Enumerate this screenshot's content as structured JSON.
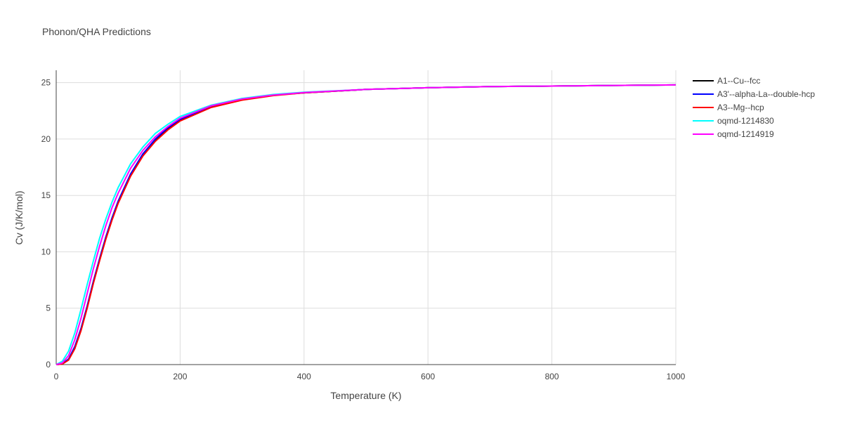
{
  "chart_data": {
    "type": "line",
    "title": "Phonon/QHA Predictions",
    "x_label": "Temperature (K)",
    "y_label": "Cv (J/K/mol)",
    "x": [
      0,
      10,
      20,
      30,
      40,
      50,
      60,
      70,
      80,
      90,
      100,
      120,
      140,
      160,
      180,
      200,
      250,
      300,
      350,
      400,
      500,
      600,
      700,
      800,
      900,
      1000
    ],
    "series": [
      {
        "name": "A1--Cu--fcc",
        "color": "#000000",
        "values": [
          0,
          0.06,
          0.45,
          1.5,
          3.1,
          5.1,
          7.3,
          9.3,
          11.2,
          12.9,
          14.4,
          16.8,
          18.6,
          19.9,
          20.9,
          21.7,
          22.85,
          23.5,
          23.9,
          24.1,
          24.4,
          24.55,
          24.65,
          24.7,
          24.75,
          24.8
        ]
      },
      {
        "name": "A3'--alpha-La--double-hcp",
        "color": "#0000ff",
        "values": [
          0,
          0.07,
          0.5,
          1.6,
          3.2,
          5.2,
          7.4,
          9.4,
          11.3,
          13.0,
          14.5,
          16.9,
          18.7,
          20.0,
          21.0,
          21.75,
          22.9,
          23.5,
          23.9,
          24.1,
          24.4,
          24.55,
          24.65,
          24.7,
          24.75,
          24.8
        ]
      },
      {
        "name": "A3--Mg--hcp",
        "color": "#ff0000",
        "values": [
          0,
          0.05,
          0.4,
          1.4,
          3.0,
          5.0,
          7.2,
          9.2,
          11.1,
          12.8,
          14.3,
          16.7,
          18.5,
          19.8,
          20.8,
          21.6,
          22.8,
          23.45,
          23.85,
          24.1,
          24.4,
          24.55,
          24.65,
          24.7,
          24.75,
          24.8
        ]
      },
      {
        "name": "oqmd-1214830",
        "color": "#00ffff",
        "values": [
          0,
          0.3,
          1.2,
          2.8,
          4.9,
          7.1,
          9.2,
          11.2,
          12.9,
          14.4,
          15.7,
          17.8,
          19.3,
          20.5,
          21.3,
          22.0,
          23.0,
          23.6,
          23.95,
          24.15,
          24.4,
          24.55,
          24.65,
          24.7,
          24.75,
          24.8
        ]
      },
      {
        "name": "oqmd-1214919",
        "color": "#ff00ff",
        "values": [
          0,
          0.15,
          0.8,
          2.2,
          4.1,
          6.3,
          8.5,
          10.5,
          12.3,
          13.9,
          15.2,
          17.4,
          19.0,
          20.2,
          21.1,
          21.85,
          22.95,
          23.55,
          23.9,
          24.12,
          24.4,
          24.55,
          24.65,
          24.7,
          24.75,
          24.8
        ]
      }
    ],
    "xlim": [
      0,
      1000
    ],
    "xticks": [
      0,
      200,
      400,
      600,
      800,
      1000
    ],
    "ylim": [
      0,
      26.1
    ],
    "yticks": [
      0,
      5,
      10,
      15,
      20,
      25
    ],
    "grid": true
  }
}
